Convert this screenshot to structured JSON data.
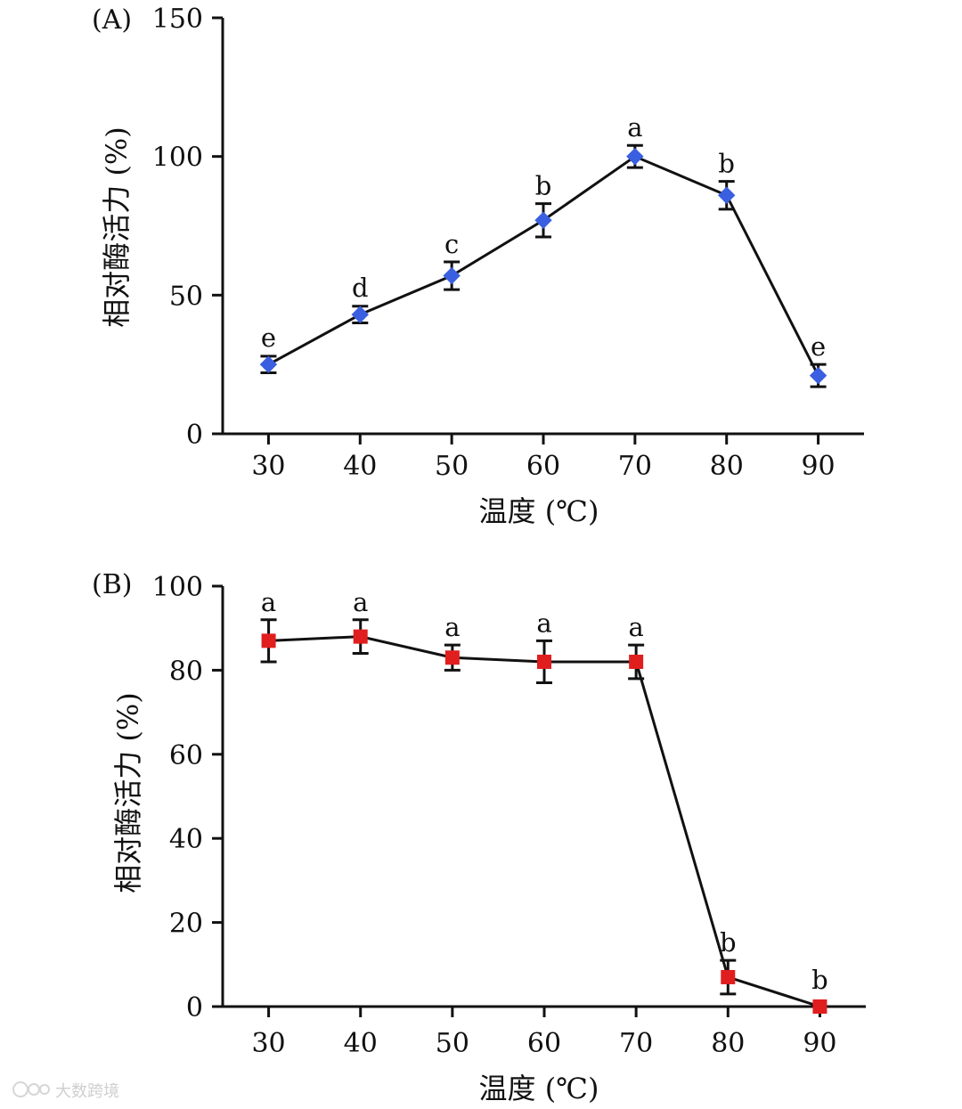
{
  "chart_data": [
    {
      "type": "line",
      "panel_label": "(A)",
      "xlabel": "温度 (℃)",
      "ylabel": "相对酶活力 (%)",
      "x": [
        30,
        40,
        50,
        60,
        70,
        80,
        90
      ],
      "xlim": [
        25,
        95
      ],
      "ylim": [
        0,
        150
      ],
      "yticks": [
        0,
        50,
        100,
        150
      ],
      "series": [
        {
          "name": "A",
          "color": "#3a5fe0",
          "marker": "diamond",
          "values": [
            25,
            43,
            57,
            77,
            100,
            86,
            21
          ],
          "errors": [
            3,
            3,
            5,
            6,
            4,
            5,
            4
          ],
          "significance": [
            "e",
            "d",
            "c",
            "b",
            "a",
            "b",
            "e"
          ]
        }
      ]
    },
    {
      "type": "line",
      "panel_label": "(B)",
      "xlabel": "温度 (℃)",
      "ylabel": "相对酶活力 (%)",
      "x": [
        30,
        40,
        50,
        60,
        70,
        80,
        90
      ],
      "xlim": [
        25,
        95
      ],
      "ylim": [
        0,
        100
      ],
      "yticks": [
        0,
        20,
        40,
        60,
        80,
        100
      ],
      "series": [
        {
          "name": "B",
          "color": "#e01e1e",
          "marker": "square",
          "values": [
            87,
            88,
            83,
            82,
            82,
            7,
            0
          ],
          "errors": [
            5,
            4,
            3,
            5,
            4,
            4,
            0
          ],
          "significance": [
            "a",
            "a",
            "a",
            "a",
            "a",
            "b",
            "b"
          ]
        }
      ]
    }
  ],
  "watermark": "大数跨境"
}
